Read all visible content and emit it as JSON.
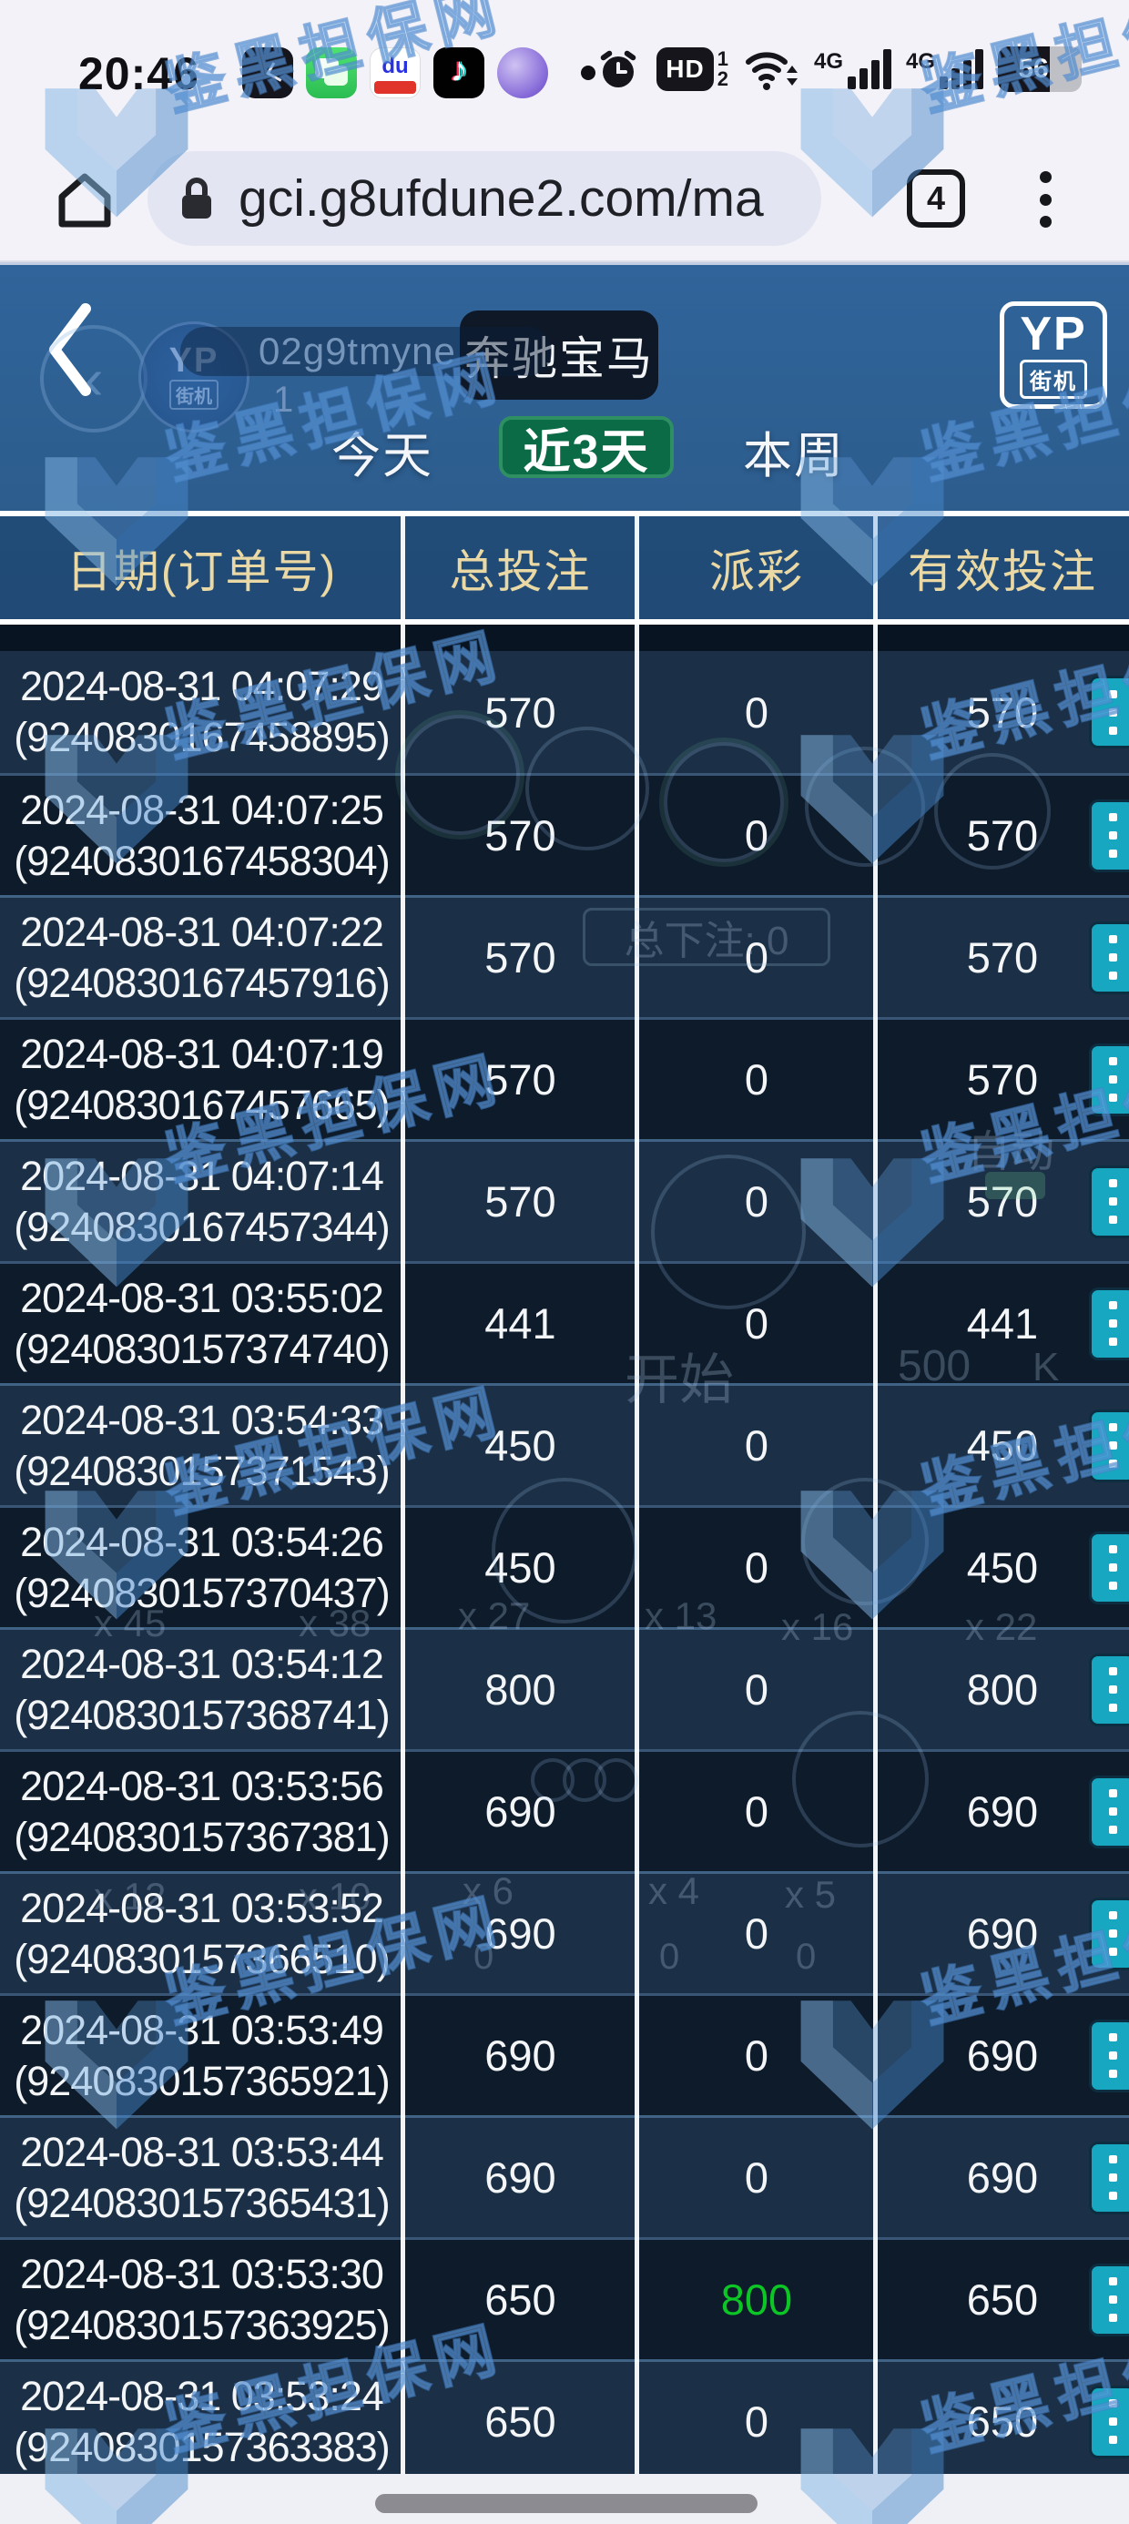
{
  "status_bar": {
    "time": "20:46",
    "hd_label": "HD",
    "sim1": "1",
    "sim2": "2",
    "net1": "4G",
    "net2": "4G",
    "battery_percent": "56",
    "baidu_label": "du",
    "tiktok_glyph": "♪"
  },
  "browser": {
    "url": "gci.g8ufdune2.com/ma",
    "tab_count": "4"
  },
  "page_header": {
    "title": "奔驰宝马",
    "brand_top": "YP",
    "brand_bottom": "街机",
    "ghost_back": "‹",
    "ghost_brand_top": "YP",
    "ghost_brand_bottom": "街机",
    "ghost_username": "02g9tmyne",
    "ghost_count": "1"
  },
  "tabs": {
    "today": "今天",
    "last3": "近3天",
    "week": "本周"
  },
  "table": {
    "headers": {
      "date": "日期(订单号)",
      "total": "总投注",
      "payout": "派彩",
      "valid": "有效投注"
    },
    "rows": [
      {
        "date": "2024-08-31 04:07:29",
        "order": "(9240830167458895)",
        "total": "570",
        "payout": "0",
        "valid": "570"
      },
      {
        "date": "2024-08-31 04:07:25",
        "order": "(9240830167458304)",
        "total": "570",
        "payout": "0",
        "valid": "570"
      },
      {
        "date": "2024-08-31 04:07:22",
        "order": "(9240830167457916)",
        "total": "570",
        "payout": "0",
        "valid": "570"
      },
      {
        "date": "2024-08-31 04:07:19",
        "order": "(9240830167457665)",
        "total": "570",
        "payout": "0",
        "valid": "570"
      },
      {
        "date": "2024-08-31 04:07:14",
        "order": "(9240830167457344)",
        "total": "570",
        "payout": "0",
        "valid": "570"
      },
      {
        "date": "2024-08-31 03:55:02",
        "order": "(9240830157374740)",
        "total": "441",
        "payout": "0",
        "valid": "441"
      },
      {
        "date": "2024-08-31 03:54:33",
        "order": "(9240830157371543)",
        "total": "450",
        "payout": "0",
        "valid": "450"
      },
      {
        "date": "2024-08-31 03:54:26",
        "order": "(9240830157370437)",
        "total": "450",
        "payout": "0",
        "valid": "450"
      },
      {
        "date": "2024-08-31 03:54:12",
        "order": "(9240830157368741)",
        "total": "800",
        "payout": "0",
        "valid": "800"
      },
      {
        "date": "2024-08-31 03:53:56",
        "order": "(9240830157367381)",
        "total": "690",
        "payout": "0",
        "valid": "690"
      },
      {
        "date": "2024-08-31 03:53:52",
        "order": "(9240830157366510)",
        "total": "690",
        "payout": "0",
        "valid": "690"
      },
      {
        "date": "2024-08-31 03:53:49",
        "order": "(9240830157365921)",
        "total": "690",
        "payout": "0",
        "valid": "690"
      },
      {
        "date": "2024-08-31 03:53:44",
        "order": "(9240830157365431)",
        "total": "690",
        "payout": "0",
        "valid": "690"
      },
      {
        "date": "2024-08-31 03:53:30",
        "order": "(9240830157363925)",
        "total": "650",
        "payout": "800",
        "valid": "650"
      },
      {
        "date": "2024-08-31 03:53:24",
        "order": "(9240830157363383)",
        "total": "650",
        "payout": "0",
        "valid": "650"
      }
    ]
  },
  "watermark": {
    "text": "鉴黑担保网"
  },
  "game_bg": {
    "total_bet": "总下注: 0",
    "auto": "自动",
    "start": "开始",
    "amount": "500",
    "k": "K",
    "mult_row1": [
      "x 45",
      "x 38",
      "x 27",
      "x 13",
      "x 16",
      "x 22"
    ],
    "mult_row2": [
      "x 12",
      "x 10",
      "x 6",
      "x 4",
      "x 5"
    ],
    "zero": "0"
  },
  "colors": {
    "accent_green": "#0cc626",
    "tab_green": "#0b6b46",
    "button_teal": "#18a7c0",
    "page_blue": "#2a5885",
    "header_gold": "#ead9a4"
  }
}
